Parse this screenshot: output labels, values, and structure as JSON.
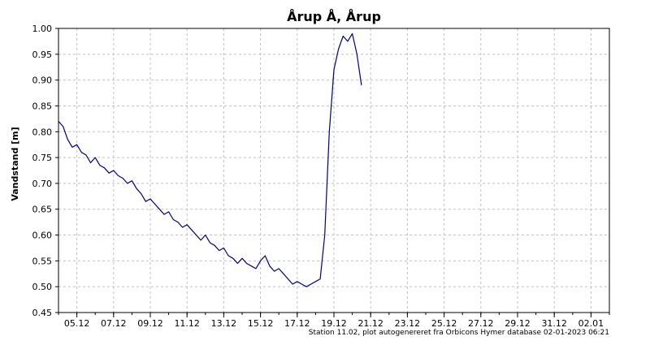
{
  "chart_data": {
    "type": "line",
    "title": "Årup Å, Årup",
    "ylabel": "Vandstand [m]",
    "xlabel": "",
    "x_tick_labels": [
      "05.12",
      "07.12",
      "09.12",
      "11.12",
      "13.12",
      "15.12",
      "17.12",
      "19.12",
      "21.12",
      "23.12",
      "25.12",
      "27.12",
      "29.12",
      "31.12",
      "02.01"
    ],
    "xlim": [
      "2022-12-04",
      "2023-01-03"
    ],
    "ylim": [
      0.45,
      1.0
    ],
    "y_ticks": [
      "0.45",
      "0.50",
      "0.55",
      "0.60",
      "0.65",
      "0.70",
      "0.75",
      "0.80",
      "0.85",
      "0.90",
      "0.95",
      "1.00"
    ],
    "grid": true,
    "line_color": "#000080",
    "series": [
      {
        "x": [
          "2022-12-04 00:00",
          "2022-12-04 06:00",
          "2022-12-04 12:00",
          "2022-12-04 18:00",
          "2022-12-05 00:00",
          "2022-12-05 06:00",
          "2022-12-05 12:00",
          "2022-12-05 18:00",
          "2022-12-06 00:00",
          "2022-12-06 06:00",
          "2022-12-06 12:00",
          "2022-12-06 18:00",
          "2022-12-07 00:00",
          "2022-12-07 06:00",
          "2022-12-07 12:00",
          "2022-12-07 18:00",
          "2022-12-08 00:00",
          "2022-12-08 06:00",
          "2022-12-08 12:00",
          "2022-12-08 18:00",
          "2022-12-09 00:00",
          "2022-12-09 06:00",
          "2022-12-09 12:00",
          "2022-12-09 18:00",
          "2022-12-10 00:00",
          "2022-12-10 06:00",
          "2022-12-10 12:00",
          "2022-12-10 18:00",
          "2022-12-11 00:00",
          "2022-12-11 06:00",
          "2022-12-11 12:00",
          "2022-12-11 18:00",
          "2022-12-12 00:00",
          "2022-12-12 06:00",
          "2022-12-12 12:00",
          "2022-12-12 18:00",
          "2022-12-13 00:00",
          "2022-12-13 06:00",
          "2022-12-13 12:00",
          "2022-12-13 18:00",
          "2022-12-14 00:00",
          "2022-12-14 06:00",
          "2022-12-14 12:00",
          "2022-12-14 18:00",
          "2022-12-15 00:00",
          "2022-12-15 06:00",
          "2022-12-15 12:00",
          "2022-12-15 18:00",
          "2022-12-16 00:00",
          "2022-12-16 06:00",
          "2022-12-16 12:00",
          "2022-12-16 18:00",
          "2022-12-17 00:00",
          "2022-12-17 06:00",
          "2022-12-17 12:00",
          "2022-12-17 18:00",
          "2022-12-18 00:00",
          "2022-12-18 06:00",
          "2022-12-18 12:00",
          "2022-12-18 18:00",
          "2022-12-19 00:00",
          "2022-12-19 06:00",
          "2022-12-19 12:00",
          "2022-12-19 18:00",
          "2022-12-20 00:00",
          "2022-12-20 06:00",
          "2022-12-20 12:00"
        ],
        "y": [
          0.82,
          0.81,
          0.785,
          0.77,
          0.775,
          0.76,
          0.755,
          0.74,
          0.75,
          0.735,
          0.73,
          0.72,
          0.725,
          0.715,
          0.71,
          0.7,
          0.705,
          0.69,
          0.68,
          0.665,
          0.67,
          0.66,
          0.65,
          0.64,
          0.645,
          0.63,
          0.625,
          0.615,
          0.62,
          0.61,
          0.6,
          0.59,
          0.6,
          0.585,
          0.58,
          0.57,
          0.575,
          0.56,
          0.555,
          0.545,
          0.555,
          0.545,
          0.54,
          0.535,
          0.55,
          0.56,
          0.54,
          0.53,
          0.535,
          0.525,
          0.515,
          0.505,
          0.51,
          0.505,
          0.5,
          0.505,
          0.51,
          0.515,
          0.6,
          0.8,
          0.92,
          0.96,
          0.985,
          0.975,
          0.99,
          0.95,
          0.89
        ]
      }
    ]
  },
  "footer": "Station 11.02, plot autogenereret fra Orbicons Hymer database 02-01-2023 06:21"
}
